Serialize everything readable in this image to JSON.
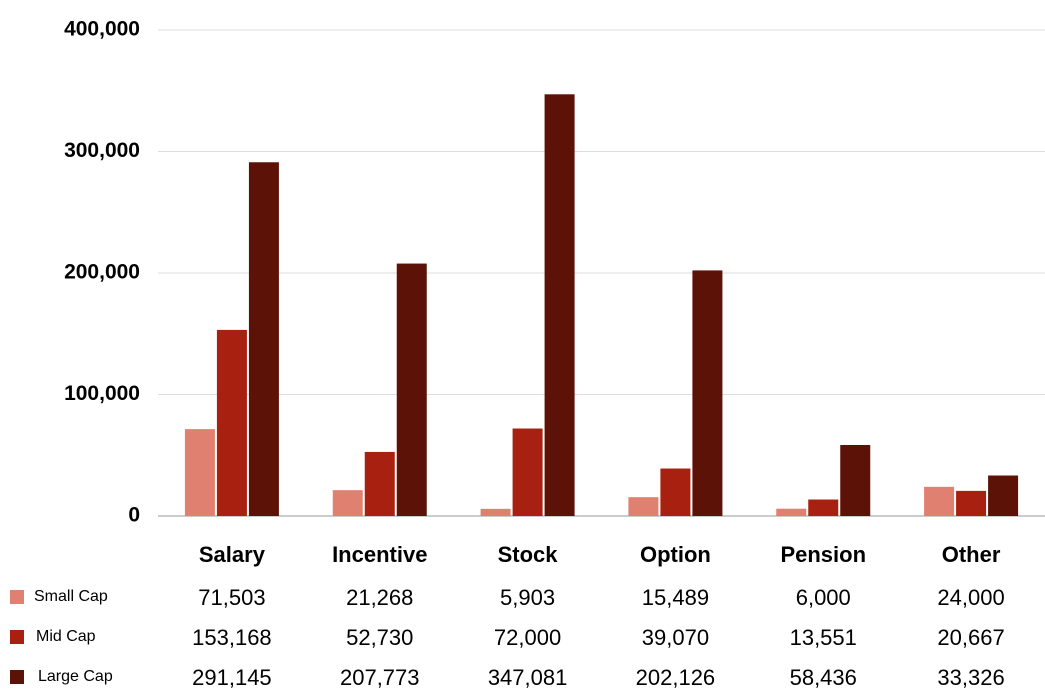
{
  "chart_data": {
    "type": "bar",
    "categories": [
      "Salary",
      "Incentive",
      "Stock",
      "Option",
      "Pension",
      "Other"
    ],
    "series": [
      {
        "name": "Small Cap",
        "color": "#e08070",
        "values": [
          71503,
          21268,
          5903,
          15489,
          6000,
          24000
        ],
        "value_labels": [
          "71,503",
          "21,268",
          "5,903",
          "15,489",
          "6,000",
          "24,000"
        ]
      },
      {
        "name": "Mid Cap",
        "color": "#a82010",
        "values": [
          153168,
          52730,
          72000,
          39070,
          13551,
          20667
        ],
        "value_labels": [
          "153,168",
          "52,730",
          "72,000",
          "39,070",
          "13,551",
          "20,667"
        ]
      },
      {
        "name": "Large Cap",
        "color": "#5c1206",
        "values": [
          291145,
          207773,
          347081,
          202126,
          58436,
          33326
        ],
        "value_labels": [
          "291,145",
          "207,773",
          "347,081",
          "202,126",
          "58,436",
          "33,326"
        ]
      }
    ],
    "ylim": [
      0,
      400000
    ],
    "yticks": [
      0,
      {
        "value": 100000,
        "label": "100,000"
      },
      {
        "value": 200000,
        "label": "200,000"
      },
      {
        "value": 300000,
        "label": "300,000"
      },
      {
        "value": 400000,
        "label": "400,000"
      }
    ],
    "grid": true
  }
}
